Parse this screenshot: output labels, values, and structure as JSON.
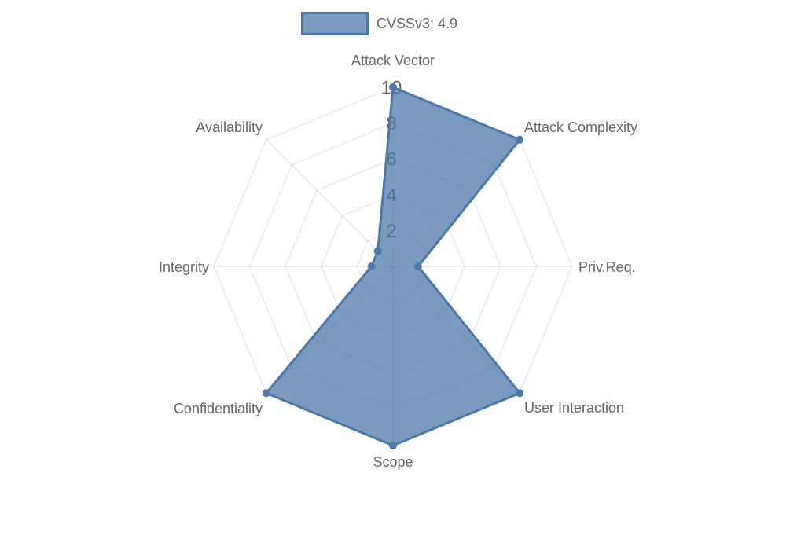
{
  "legend": {
    "label": "CVSSv3: 4.9"
  },
  "colors": {
    "series": "#4d79a9",
    "series_fill": "rgba(77,121,169,0.75)",
    "grid": "rgba(0,0,0,0.12)",
    "text": "#666666",
    "tick_backdrop": "rgba(255,255,255,0.75)"
  },
  "chart_data": {
    "type": "radar",
    "title": "CVSSv3: 4.9",
    "categories": [
      "Attack Vector",
      "Attack Complexity",
      "Priv.Req.",
      "User Interaction",
      "Scope",
      "Confidentiality",
      "Integrity",
      "Availability"
    ],
    "series": [
      {
        "name": "CVSSv3: 4.9",
        "values": [
          10,
          10,
          1.4,
          10,
          10,
          10,
          1.2,
          1.2
        ]
      }
    ],
    "ticks": [
      2,
      4,
      6,
      8,
      10
    ],
    "rmax": 10,
    "rmin": 0,
    "grid": true,
    "legend_position": "top"
  }
}
